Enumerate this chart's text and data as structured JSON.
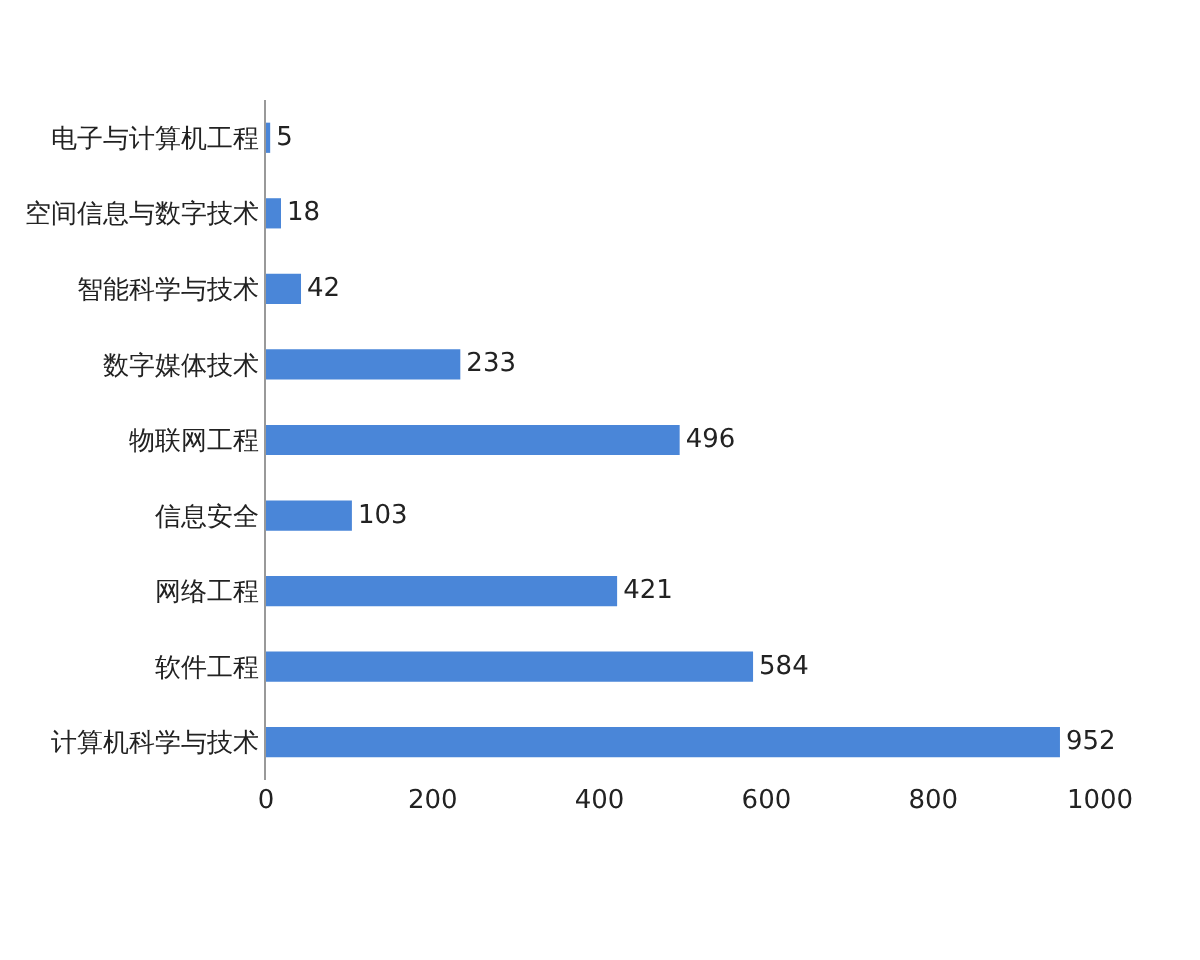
{
  "chart_data": {
    "type": "bar",
    "orientation": "horizontal",
    "categories": [
      "电子与计算机工程",
      "空间信息与数字技术",
      "智能科学与技术",
      "数字媒体技术",
      "物联网工程",
      "信息安全",
      "网络工程",
      "软件工程",
      "计算机科学与技术"
    ],
    "values": [
      5,
      18,
      42,
      233,
      496,
      103,
      421,
      584,
      952
    ],
    "color": "#4a86d8",
    "xlim": [
      0,
      1000
    ],
    "xticks": [
      0,
      200,
      400,
      600,
      800,
      1000
    ],
    "grid": false,
    "data_labels": true
  }
}
